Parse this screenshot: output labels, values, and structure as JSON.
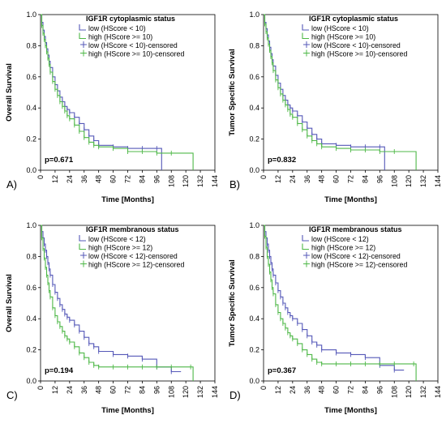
{
  "colors": {
    "low": "#5558b8",
    "high": "#4fb848",
    "axis": "#000000",
    "text": "#000000"
  },
  "chart_data": [
    {
      "panel_label": "A)",
      "type": "line",
      "legend_title": "IGF1R cytoplasmic status",
      "legend_placement": "top-right",
      "ylabel": "Overall Survival",
      "xlabel": "Time [Months]",
      "p_value": "p=0.671",
      "xlim": [
        0,
        144
      ],
      "ylim": [
        0,
        1
      ],
      "x_ticks": [
        0,
        12,
        24,
        36,
        48,
        60,
        72,
        84,
        96,
        108,
        120,
        132,
        144
      ],
      "y_ticks": [
        0.0,
        0.2,
        0.4,
        0.6,
        0.8,
        1.0
      ],
      "y_tick_labels": [
        "0.0",
        "0.2",
        "0.4",
        "0.6",
        "0.8",
        "1.0"
      ],
      "grid": false,
      "series": [
        {
          "name": "low (HScore < 10)",
          "color_key": "low",
          "x": [
            0,
            1,
            2,
            3,
            4,
            5,
            6,
            7,
            8,
            10,
            12,
            14,
            16,
            18,
            20,
            22,
            24,
            28,
            32,
            36,
            40,
            44,
            48,
            60,
            72,
            84,
            96,
            100
          ],
          "y": [
            1.0,
            0.95,
            0.9,
            0.86,
            0.82,
            0.78,
            0.74,
            0.7,
            0.66,
            0.6,
            0.55,
            0.51,
            0.47,
            0.44,
            0.41,
            0.39,
            0.37,
            0.34,
            0.3,
            0.26,
            0.22,
            0.19,
            0.16,
            0.15,
            0.14,
            0.14,
            0.14,
            0.0
          ]
        },
        {
          "name": "high (HScore >= 10)",
          "color_key": "high",
          "x": [
            0,
            1,
            2,
            3,
            4,
            5,
            6,
            7,
            8,
            10,
            12,
            14,
            16,
            18,
            20,
            22,
            24,
            28,
            32,
            36,
            40,
            44,
            48,
            60,
            72,
            84,
            96,
            108,
            126
          ],
          "y": [
            1.0,
            0.93,
            0.88,
            0.84,
            0.8,
            0.76,
            0.72,
            0.68,
            0.63,
            0.57,
            0.52,
            0.48,
            0.44,
            0.41,
            0.38,
            0.35,
            0.33,
            0.29,
            0.25,
            0.21,
            0.18,
            0.16,
            0.15,
            0.14,
            0.12,
            0.12,
            0.11,
            0.11,
            0.0
          ]
        },
        {
          "name": "low (HScore < 10)-censored",
          "color_key": "low",
          "censored_of": 0
        },
        {
          "name": "high (HScore >= 10)-censored",
          "color_key": "high",
          "censored_of": 1
        }
      ]
    },
    {
      "panel_label": "B)",
      "type": "line",
      "legend_title": "IGF1R cytoplasmic status",
      "legend_placement": "top-right",
      "ylabel": "Tumor Specific Survival",
      "xlabel": "Time [Months]",
      "p_value": "p=0.832",
      "xlim": [
        0,
        144
      ],
      "ylim": [
        0,
        1
      ],
      "x_ticks": [
        0,
        12,
        24,
        36,
        48,
        60,
        72,
        84,
        96,
        108,
        120,
        132,
        144
      ],
      "y_ticks": [
        0.0,
        0.2,
        0.4,
        0.6,
        0.8,
        1.0
      ],
      "y_tick_labels": [
        "0.0",
        "0.2",
        "0.4",
        "0.6",
        "0.8",
        "1.0"
      ],
      "grid": false,
      "series": [
        {
          "name": "low (HScore < 10)",
          "color_key": "low",
          "x": [
            0,
            1,
            2,
            3,
            4,
            5,
            6,
            7,
            8,
            10,
            12,
            14,
            16,
            18,
            20,
            22,
            24,
            28,
            32,
            36,
            40,
            44,
            48,
            60,
            72,
            84,
            96,
            100
          ],
          "y": [
            1.0,
            0.95,
            0.91,
            0.87,
            0.83,
            0.79,
            0.75,
            0.71,
            0.67,
            0.61,
            0.56,
            0.52,
            0.48,
            0.45,
            0.42,
            0.4,
            0.38,
            0.35,
            0.31,
            0.27,
            0.23,
            0.2,
            0.17,
            0.16,
            0.15,
            0.15,
            0.15,
            0.0
          ]
        },
        {
          "name": "high (HScore >= 10)",
          "color_key": "high",
          "x": [
            0,
            1,
            2,
            3,
            4,
            5,
            6,
            7,
            8,
            10,
            12,
            14,
            16,
            18,
            20,
            22,
            24,
            28,
            32,
            36,
            40,
            44,
            48,
            60,
            72,
            84,
            96,
            108,
            126
          ],
          "y": [
            1.0,
            0.94,
            0.89,
            0.85,
            0.81,
            0.77,
            0.73,
            0.69,
            0.64,
            0.58,
            0.53,
            0.49,
            0.45,
            0.42,
            0.39,
            0.36,
            0.34,
            0.3,
            0.26,
            0.22,
            0.19,
            0.17,
            0.15,
            0.14,
            0.13,
            0.13,
            0.12,
            0.12,
            0.0
          ]
        },
        {
          "name": "low (HScore < 10)-censored",
          "color_key": "low",
          "censored_of": 0
        },
        {
          "name": "high (HScore >= 10)-censored",
          "color_key": "high",
          "censored_of": 1
        }
      ]
    },
    {
      "panel_label": "C)",
      "type": "line",
      "legend_title": "IGF1R membranous status",
      "legend_placement": "top-right",
      "ylabel": "Overall Survival",
      "xlabel": "Time [Months]",
      "p_value": "p=0.194",
      "xlim": [
        0,
        144
      ],
      "ylim": [
        0,
        1
      ],
      "x_ticks": [
        0,
        12,
        24,
        36,
        48,
        60,
        72,
        84,
        96,
        108,
        120,
        132,
        144
      ],
      "y_ticks": [
        0.0,
        0.2,
        0.4,
        0.6,
        0.8,
        1.0
      ],
      "y_tick_labels": [
        "0.0",
        "0.2",
        "0.4",
        "0.6",
        "0.8",
        "1.0"
      ],
      "grid": false,
      "series": [
        {
          "name": "low (HScore < 12)",
          "color_key": "low",
          "x": [
            0,
            1,
            2,
            3,
            4,
            5,
            6,
            7,
            8,
            10,
            12,
            14,
            16,
            18,
            20,
            22,
            24,
            28,
            32,
            36,
            40,
            44,
            48,
            60,
            72,
            84,
            96,
            108,
            116
          ],
          "y": [
            1.0,
            0.96,
            0.92,
            0.88,
            0.84,
            0.8,
            0.76,
            0.72,
            0.68,
            0.62,
            0.57,
            0.53,
            0.49,
            0.46,
            0.43,
            0.41,
            0.39,
            0.36,
            0.32,
            0.28,
            0.24,
            0.22,
            0.19,
            0.17,
            0.16,
            0.14,
            0.09,
            0.06,
            0.06
          ]
        },
        {
          "name": "high (HScore >= 12)",
          "color_key": "high",
          "x": [
            0,
            1,
            2,
            3,
            4,
            5,
            6,
            7,
            8,
            10,
            12,
            14,
            16,
            18,
            20,
            22,
            24,
            28,
            32,
            36,
            40,
            44,
            48,
            60,
            72,
            84,
            96,
            108,
            124,
            126
          ],
          "y": [
            1.0,
            0.92,
            0.85,
            0.79,
            0.73,
            0.68,
            0.63,
            0.58,
            0.54,
            0.47,
            0.42,
            0.38,
            0.35,
            0.32,
            0.29,
            0.27,
            0.25,
            0.22,
            0.18,
            0.15,
            0.12,
            0.1,
            0.09,
            0.09,
            0.09,
            0.09,
            0.09,
            0.09,
            0.09,
            0.0
          ]
        },
        {
          "name": "low (HScore < 12)-censored",
          "color_key": "low",
          "censored_of": 0
        },
        {
          "name": "high (HScore >= 12)-censored",
          "color_key": "high",
          "censored_of": 1
        }
      ]
    },
    {
      "panel_label": "D)",
      "type": "line",
      "legend_title": "IGF1R membranous status",
      "legend_placement": "top-right",
      "ylabel": "Tumor Specific Survival",
      "xlabel": "Time [Months]",
      "p_value": "p=0.367",
      "xlim": [
        0,
        144
      ],
      "ylim": [
        0,
        1
      ],
      "x_ticks": [
        0,
        12,
        24,
        36,
        48,
        60,
        72,
        84,
        96,
        108,
        120,
        132,
        144
      ],
      "y_ticks": [
        0.0,
        0.2,
        0.4,
        0.6,
        0.8,
        1.0
      ],
      "y_tick_labels": [
        "0.0",
        "0.2",
        "0.4",
        "0.6",
        "0.8",
        "1.0"
      ],
      "grid": false,
      "series": [
        {
          "name": "low (HScore < 12)",
          "color_key": "low",
          "x": [
            0,
            1,
            2,
            3,
            4,
            5,
            6,
            7,
            8,
            10,
            12,
            14,
            16,
            18,
            20,
            22,
            24,
            28,
            32,
            36,
            40,
            44,
            48,
            60,
            72,
            84,
            96,
            108,
            116
          ],
          "y": [
            1.0,
            0.96,
            0.92,
            0.88,
            0.84,
            0.8,
            0.76,
            0.72,
            0.68,
            0.63,
            0.58,
            0.54,
            0.5,
            0.47,
            0.44,
            0.42,
            0.4,
            0.37,
            0.33,
            0.29,
            0.25,
            0.23,
            0.2,
            0.18,
            0.17,
            0.15,
            0.1,
            0.07,
            0.07
          ]
        },
        {
          "name": "high (HScore >= 12)",
          "color_key": "high",
          "x": [
            0,
            1,
            2,
            3,
            4,
            5,
            6,
            7,
            8,
            10,
            12,
            14,
            16,
            18,
            20,
            22,
            24,
            28,
            32,
            36,
            40,
            44,
            48,
            60,
            72,
            84,
            96,
            108,
            124,
            126
          ],
          "y": [
            1.0,
            0.93,
            0.86,
            0.8,
            0.75,
            0.7,
            0.65,
            0.6,
            0.56,
            0.49,
            0.44,
            0.4,
            0.37,
            0.34,
            0.31,
            0.29,
            0.27,
            0.24,
            0.2,
            0.17,
            0.14,
            0.12,
            0.11,
            0.11,
            0.11,
            0.11,
            0.11,
            0.11,
            0.11,
            0.0
          ]
        },
        {
          "name": "low (HScore < 12)-censored",
          "color_key": "low",
          "censored_of": 0
        },
        {
          "name": "high (HScore >= 12)-censored",
          "color_key": "high",
          "censored_of": 1
        }
      ]
    }
  ]
}
